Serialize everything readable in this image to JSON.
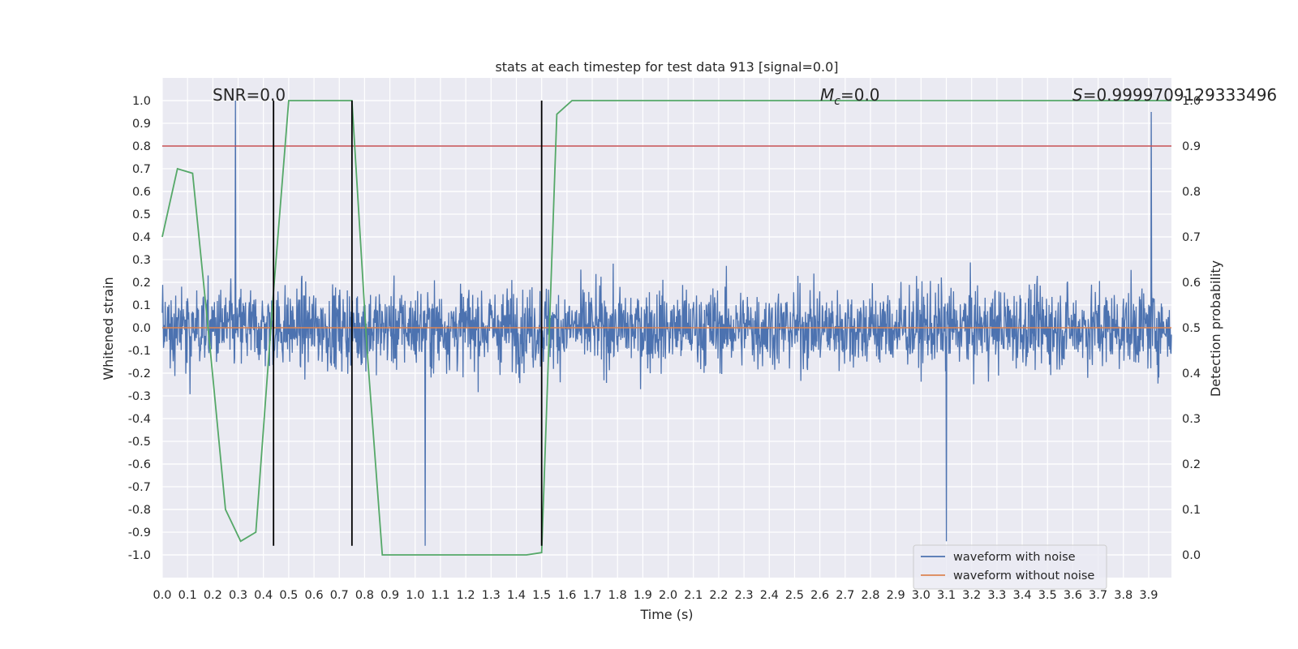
{
  "chart_data": {
    "type": "line",
    "title": "stats at each timestep for test data 913 [signal=0.0]",
    "xlabel": "Time (s)",
    "ylabel": "Whitened strain",
    "y2label": "Detection probability",
    "xlim": [
      0.0,
      3.99
    ],
    "ylim": [
      -1.1,
      1.1
    ],
    "y2lim": [
      -0.05,
      1.05
    ],
    "grid": true,
    "xticks": [
      0.0,
      0.1,
      0.2,
      0.3,
      0.4,
      0.5,
      0.6,
      0.7,
      0.8,
      0.9,
      1.0,
      1.1,
      1.2,
      1.3,
      1.4,
      1.5,
      1.6,
      1.7,
      1.8,
      1.9,
      2.0,
      2.1,
      2.2,
      2.3,
      2.4,
      2.5,
      2.6,
      2.7,
      2.8,
      2.9,
      3.0,
      3.1,
      3.2,
      3.3,
      3.4,
      3.5,
      3.6,
      3.7,
      3.8,
      3.9
    ],
    "yticks": [
      1.0,
      0.9,
      0.8,
      0.7,
      0.6,
      0.5,
      0.4,
      0.3,
      0.2,
      0.1,
      0.0,
      -0.1,
      -0.2,
      -0.3,
      -0.4,
      -0.5,
      -0.6,
      -0.7,
      -0.8,
      -0.9,
      -1.0
    ],
    "y2ticks": [
      1.0,
      0.9,
      0.8,
      0.7,
      0.6,
      0.5,
      0.4,
      0.3,
      0.2,
      0.1,
      0.0
    ],
    "legend_position": "lower-right",
    "annotations": {
      "snr": "SNR=0.0",
      "mc_symbol": "M",
      "mc_sub": "c",
      "mc_value": "=0.0",
      "s_symbol": "S",
      "s_value": "=0.9999709129333496"
    },
    "series": [
      {
        "name": "waveform with noise",
        "axis": "left",
        "color": "#4c72b0",
        "kind": "noise",
        "amplitude_typical": 0.2,
        "peaks": [
          [
            0.29,
            1.0
          ],
          [
            1.04,
            -0.96
          ],
          [
            3.1,
            -0.94
          ],
          [
            3.91,
            0.95
          ]
        ]
      },
      {
        "name": "waveform without noise",
        "axis": "left",
        "color": "#dd8452",
        "y_constant": 0.0
      },
      {
        "axis": "right",
        "color": "#55a868",
        "x": [
          0.0,
          0.06,
          0.12,
          0.19,
          0.25,
          0.31,
          0.37,
          0.44,
          0.5,
          0.56,
          0.62,
          0.69,
          0.75,
          0.81,
          0.87,
          0.94,
          1.0,
          1.06,
          1.12,
          1.19,
          1.25,
          1.31,
          1.37,
          1.44,
          1.5,
          1.56,
          1.62,
          1.69,
          3.99
        ],
        "y": [
          0.7,
          0.85,
          0.84,
          0.45,
          0.1,
          0.03,
          0.05,
          0.58,
          1.0,
          1.0,
          1.0,
          1.0,
          1.0,
          0.45,
          0.0,
          0.0,
          0.0,
          0.0,
          0.0,
          0.0,
          0.0,
          0.0,
          0.0,
          0.0,
          0.005,
          0.97,
          1.0,
          1.0,
          1.0
        ]
      },
      {
        "axis": "right",
        "color": "#c44e52",
        "y_constant": 0.9
      }
    ],
    "vlines": [
      {
        "x": 0.44,
        "ymin": -0.96,
        "ymax": 1.0,
        "color": "#000000"
      },
      {
        "x": 0.75,
        "ymin": -0.96,
        "ymax": 1.0,
        "color": "#000000"
      },
      {
        "x": 1.5,
        "ymin": -0.96,
        "ymax": 1.0,
        "color": "#000000"
      }
    ],
    "colors": {
      "plot_background": "#eaeaf2",
      "grid": "#ffffff",
      "noise": "#4c72b0",
      "clean": "#dd8452",
      "probability": "#55a868",
      "threshold": "#c44e52",
      "vline": "#000000"
    }
  }
}
